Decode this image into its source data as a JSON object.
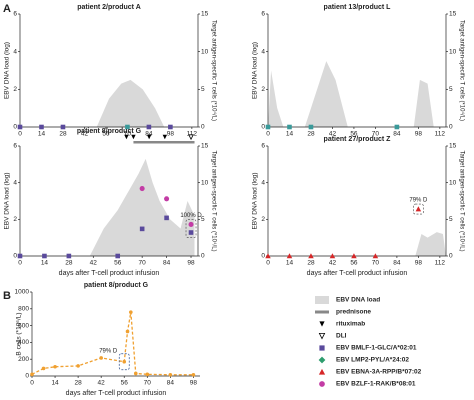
{
  "panels": [
    "A",
    "B"
  ],
  "chart_data": [
    {
      "type": "area",
      "title": "patient 2/product A",
      "ylabel": "EBV DNA load (log)",
      "y2label": "Target antigen-specific T cells (*10⁴/L)",
      "xlim": [
        0,
        116
      ],
      "xticks": [
        0,
        14,
        28,
        42,
        56,
        70,
        84,
        98,
        112
      ],
      "ylim": [
        0,
        6
      ],
      "yticks": [
        0,
        2,
        4,
        6
      ],
      "y2lim": [
        0,
        15
      ],
      "y2ticks": [
        0,
        5,
        10,
        15
      ],
      "area": {
        "color": "#d9d9d9",
        "x": [
          50,
          58,
          66,
          72,
          80,
          88,
          94
        ],
        "values": [
          0,
          1.5,
          2.3,
          2.5,
          2,
          1,
          0
        ]
      },
      "series": [
        {
          "color": "#5a4a9c",
          "symbol": "square",
          "axis": "y2",
          "x": [
            0,
            14,
            28,
            84,
            98
          ],
          "values": [
            0,
            0,
            0,
            0,
            0
          ]
        },
        {
          "color": "#3a9a9a",
          "symbol": "square",
          "axis": "y2",
          "x": [
            70
          ],
          "values": [
            0
          ]
        }
      ]
    },
    {
      "type": "area",
      "title": "patient 13/product L",
      "ylabel": "EBV DNA load (log)",
      "y2label": "Target antigen-specific T cells (*10⁴/L)",
      "xlim": [
        0,
        116
      ],
      "xticks": [
        0,
        14,
        28,
        42,
        56,
        70,
        84,
        98,
        112
      ],
      "ylim": [
        0,
        6
      ],
      "yticks": [
        0,
        2,
        4,
        6
      ],
      "y2lim": [
        0,
        15
      ],
      "y2ticks": [
        0,
        5,
        10,
        15
      ],
      "area": {
        "color": "#d9d9d9",
        "x": [
          0,
          2,
          6,
          10,
          24,
          32,
          38,
          44,
          52,
          95,
          99,
          104,
          108
        ],
        "values": [
          0,
          3,
          1,
          0,
          0,
          2,
          3.5,
          2.5,
          0,
          0,
          2.5,
          2.3,
          0
        ]
      },
      "series": [
        {
          "color": "#3a9a9a",
          "symbol": "square",
          "axis": "y2",
          "x": [
            0,
            14,
            28,
            84
          ],
          "values": [
            0,
            0,
            0,
            0
          ]
        }
      ]
    },
    {
      "type": "area",
      "title": "patient 8/product G",
      "xlabel": "days after T-cell product infusion",
      "ylabel": "EBV DNA load (log)",
      "y2label": "Target antigen-specific T cells (*10⁴/L)",
      "xlim": [
        0,
        102
      ],
      "xticks": [
        0,
        14,
        28,
        42,
        56,
        70,
        84,
        98
      ],
      "ylim": [
        0,
        6
      ],
      "yticks": [
        0,
        2,
        4,
        6
      ],
      "y2lim": [
        0,
        15
      ],
      "y2ticks": [
        0,
        5,
        10,
        15
      ],
      "area": {
        "color": "#d9d9d9",
        "x": [
          40,
          48,
          56,
          62,
          68,
          72,
          76,
          80,
          86,
          92,
          96,
          100
        ],
        "values": [
          0,
          1.5,
          2.5,
          3.5,
          4.5,
          5.3,
          4,
          3,
          2,
          1.5,
          3,
          2.2
        ]
      },
      "series": [
        {
          "color": "#5a4a9c",
          "symbol": "square",
          "axis": "y2",
          "x": [
            0,
            14,
            28,
            56,
            70,
            84,
            98
          ],
          "values": [
            0,
            0,
            0,
            0,
            3.7,
            5.2,
            3.2
          ]
        },
        {
          "color": "#c33ca5",
          "symbol": "circle",
          "axis": "y2",
          "x": [
            70,
            84,
            98
          ],
          "values": [
            9.2,
            7.8,
            4.3
          ]
        }
      ],
      "rituximab": [
        61,
        65,
        74,
        83
      ],
      "dli": [
        98
      ],
      "prednisone": [
        65,
        100
      ],
      "annotation": "100% D"
    },
    {
      "type": "area",
      "title": "patient 27/product Z",
      "xlabel": "days after T-cell product infusion",
      "ylabel": "EBV DNA load (log)",
      "y2label": "Target antigen-specific T cells (*10⁴/L)",
      "xlim": [
        0,
        116
      ],
      "xticks": [
        0,
        14,
        28,
        42,
        56,
        70,
        84,
        98,
        112
      ],
      "ylim": [
        0,
        6
      ],
      "yticks": [
        0,
        2,
        4,
        6
      ],
      "y2lim": [
        0,
        15
      ],
      "y2ticks": [
        0,
        5,
        10,
        15
      ],
      "area": {
        "color": "#d9d9d9",
        "x": [
          96,
          100,
          104,
          110,
          114,
          116
        ],
        "values": [
          0,
          1.2,
          1,
          1.3,
          1.2,
          0
        ]
      },
      "series": [
        {
          "color": "#d62728",
          "symbol": "triangle",
          "axis": "y2",
          "x": [
            0,
            14,
            28,
            42,
            56,
            70,
            98
          ],
          "values": [
            0,
            0,
            0,
            0,
            0,
            0,
            6.4
          ]
        }
      ],
      "annotation": "79% D"
    },
    {
      "type": "line",
      "title": "patient 8/product G",
      "xlabel": "days after T-cell product infusion",
      "ylabel": "B cells (*10⁶/L)",
      "xlim": [
        0,
        102
      ],
      "xticks": [
        0,
        14,
        28,
        42,
        56,
        70,
        84,
        98
      ],
      "ylim": [
        0,
        1000
      ],
      "yticks": [
        0,
        200,
        400,
        600,
        800,
        1000
      ],
      "series": [
        {
          "color": "#f0a030",
          "x": [
            0,
            7,
            14,
            28,
            42,
            56,
            58,
            60,
            63,
            70,
            84,
            98
          ],
          "values": [
            20,
            90,
            110,
            120,
            215,
            170,
            530,
            760,
            30,
            20,
            15,
            15
          ]
        }
      ],
      "annotation": "79% D"
    }
  ],
  "legend": [
    {
      "label": "EBV DNA load",
      "symbol": "area",
      "color": "#d9d9d9"
    },
    {
      "label": "prednisone",
      "symbol": "bar",
      "color": "#888888"
    },
    {
      "label": "rituximab",
      "symbol": "down",
      "color": "#000000"
    },
    {
      "label": "DLI",
      "symbol": "down-open",
      "color": "#000000"
    },
    {
      "label": "EBV BMLF-1-GLC/A*02:01",
      "symbol": "square",
      "color": "#5a4a9c"
    },
    {
      "label": "EBV LMP2-PYL/A*24:02",
      "symbol": "diamond",
      "color": "#2e9d6e"
    },
    {
      "label": "EBV EBNA-3A-RPP/B*07:02",
      "symbol": "triangle",
      "color": "#d62728"
    },
    {
      "label": "EBV BZLF-1-RAK/B*08:01",
      "symbol": "circle",
      "color": "#c33ca5"
    }
  ]
}
